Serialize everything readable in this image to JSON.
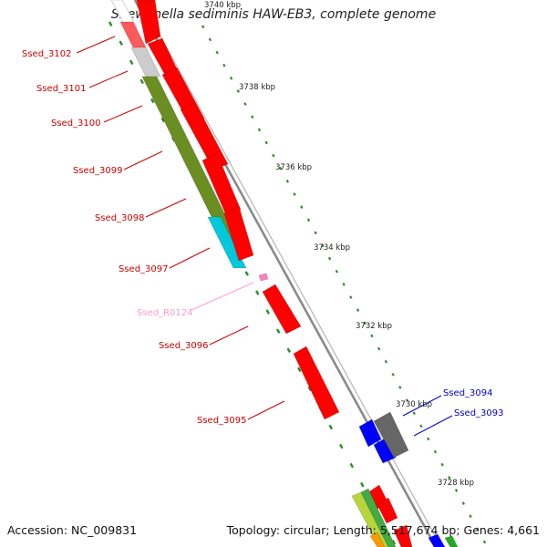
{
  "title": "Shewanella sediminis HAW-EB3, complete genome",
  "footer": {
    "accession": "Accession: NC_009831",
    "summary": "Topology: circular; Length: 5,517,674 bp; Genes: 4,661"
  },
  "colors": {
    "backbone": "#8a8a8a",
    "tick": "#2e8b2e",
    "red_gene": "#ff0000",
    "olive": "#6b8e23",
    "cyan": "#00c8dc",
    "blue_gene": "#0000ff",
    "gray_gene": "#666666",
    "pink_rna": "#ff7fbf",
    "label_red": "#cc0000",
    "label_blue": "#0000cc",
    "label_pink": "#ff9ccc"
  },
  "kbp_labels": [
    "3740 kbp",
    "3738 kbp",
    "3736 kbp",
    "3734 kbp",
    "3732 kbp",
    "3730 kbp",
    "3728 kbp"
  ],
  "gene_labels": [
    {
      "id": "Ssed_3102",
      "color": "label_red"
    },
    {
      "id": "Ssed_3101",
      "color": "label_red"
    },
    {
      "id": "Ssed_3100",
      "color": "label_red"
    },
    {
      "id": "Ssed_3099",
      "color": "label_red"
    },
    {
      "id": "Ssed_3098",
      "color": "label_red"
    },
    {
      "id": "Ssed_3097",
      "color": "label_red"
    },
    {
      "id": "Ssed_R0124",
      "color": "label_pink"
    },
    {
      "id": "Ssed_3096",
      "color": "label_red"
    },
    {
      "id": "Ssed_3095",
      "color": "label_red"
    },
    {
      "id": "Ssed_3094",
      "color": "label_blue"
    },
    {
      "id": "Ssed_3093",
      "color": "label_blue"
    }
  ]
}
